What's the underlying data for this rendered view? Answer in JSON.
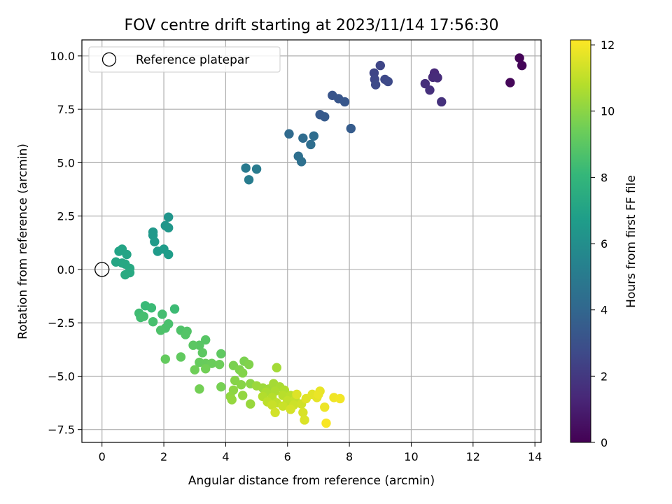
{
  "chart_data": {
    "type": "scatter",
    "title": "FOV centre drift starting at 2023/11/14 17:56:30",
    "xlabel": "Angular distance from reference (arcmin)",
    "ylabel": "Rotation from reference (arcmin)",
    "xlim": [
      -0.65,
      14.2
    ],
    "ylim": [
      -8.1,
      10.75
    ],
    "xticks": [
      0,
      2,
      4,
      6,
      8,
      10,
      12,
      14
    ],
    "yticks": [
      -7.5,
      -5.0,
      -2.5,
      0.0,
      2.5,
      5.0,
      7.5,
      10.0
    ],
    "xtick_labels": [
      "0",
      "2",
      "4",
      "6",
      "8",
      "10",
      "12",
      "14"
    ],
    "ytick_labels": [
      "−7.5",
      "−5.0",
      "−2.5",
      "0.0",
      "2.5",
      "5.0",
      "7.5",
      "10.0"
    ],
    "grid": true,
    "legend": {
      "placement": "upper-left",
      "label": "Reference platepar"
    },
    "reference_point": {
      "x": 0,
      "y": 0
    },
    "colorbar": {
      "label": "Hours from first FF file",
      "min": 0,
      "max": 12.15,
      "ticks": [
        0,
        2,
        4,
        6,
        8,
        10,
        12
      ],
      "tick_labels": [
        "0",
        "2",
        "4",
        "6",
        "8",
        "10",
        "12"
      ],
      "colormap": "viridis",
      "colors": [
        "#440154",
        "#482878",
        "#3e4a89",
        "#31688e",
        "#26828e",
        "#1f9e89",
        "#35b779",
        "#6ece58",
        "#b5de2b",
        "#fde725"
      ]
    },
    "points": [
      [
        13.5,
        9.9,
        0.1
      ],
      [
        13.58,
        9.55,
        0.15
      ],
      [
        13.2,
        8.75,
        0.2
      ],
      [
        10.75,
        9.2,
        1.4
      ],
      [
        10.7,
        9.0,
        1.45
      ],
      [
        10.85,
        8.98,
        1.5
      ],
      [
        10.45,
        8.7,
        1.6
      ],
      [
        10.6,
        8.4,
        1.65
      ],
      [
        10.98,
        7.85,
        1.7
      ],
      [
        8.8,
        9.2,
        2.5
      ],
      [
        9.0,
        9.55,
        2.55
      ],
      [
        8.82,
        8.9,
        2.6
      ],
      [
        9.15,
        8.9,
        2.65
      ],
      [
        9.25,
        8.8,
        2.7
      ],
      [
        8.85,
        8.65,
        2.75
      ],
      [
        7.45,
        8.15,
        3.2
      ],
      [
        7.65,
        8.0,
        3.25
      ],
      [
        7.85,
        7.85,
        3.3
      ],
      [
        7.05,
        7.25,
        3.4
      ],
      [
        7.2,
        7.15,
        3.45
      ],
      [
        8.05,
        6.6,
        3.5
      ],
      [
        6.05,
        6.35,
        4.2
      ],
      [
        6.5,
        6.15,
        4.25
      ],
      [
        6.85,
        6.25,
        4.3
      ],
      [
        6.75,
        5.85,
        4.35
      ],
      [
        6.35,
        5.3,
        4.4
      ],
      [
        6.45,
        5.05,
        4.45
      ],
      [
        4.65,
        4.75,
        5.0
      ],
      [
        5.0,
        4.7,
        5.05
      ],
      [
        4.75,
        4.2,
        5.1
      ],
      [
        2.15,
        2.45,
        6.3
      ],
      [
        2.05,
        2.05,
        6.35
      ],
      [
        2.15,
        1.95,
        6.4
      ],
      [
        1.65,
        1.75,
        6.45
      ],
      [
        1.65,
        1.6,
        6.5
      ],
      [
        1.7,
        1.3,
        6.55
      ],
      [
        1.8,
        0.85,
        6.6
      ],
      [
        2.0,
        0.95,
        6.65
      ],
      [
        2.15,
        0.7,
        6.7
      ],
      [
        0.55,
        0.85,
        7.0
      ],
      [
        0.65,
        0.95,
        7.05
      ],
      [
        0.8,
        0.7,
        7.1
      ],
      [
        0.45,
        0.35,
        7.15
      ],
      [
        0.65,
        0.3,
        7.2
      ],
      [
        0.75,
        0.25,
        7.25
      ],
      [
        0.9,
        0.05,
        7.3
      ],
      [
        0.9,
        -0.15,
        7.35
      ],
      [
        0.75,
        -0.25,
        7.4
      ],
      [
        1.4,
        -1.7,
        8.2
      ],
      [
        1.6,
        -1.8,
        8.25
      ],
      [
        2.35,
        -1.85,
        8.3
      ],
      [
        1.2,
        -2.05,
        8.35
      ],
      [
        1.25,
        -2.25,
        8.4
      ],
      [
        1.95,
        -2.1,
        8.45
      ],
      [
        1.35,
        -2.2,
        8.5
      ],
      [
        1.65,
        -2.45,
        8.55
      ],
      [
        2.15,
        -2.55,
        8.6
      ],
      [
        2.05,
        -2.75,
        8.65
      ],
      [
        1.9,
        -2.85,
        8.7
      ],
      [
        2.55,
        -2.85,
        8.75
      ],
      [
        2.75,
        -2.9,
        8.8
      ],
      [
        2.7,
        -3.05,
        8.85
      ],
      [
        3.35,
        -3.3,
        8.9
      ],
      [
        3.15,
        -3.55,
        8.95
      ],
      [
        2.95,
        -3.55,
        9.0
      ],
      [
        3.25,
        -3.9,
        9.05
      ],
      [
        3.85,
        -3.95,
        9.1
      ],
      [
        2.55,
        -4.1,
        9.15
      ],
      [
        2.05,
        -4.2,
        9.2
      ],
      [
        3.15,
        -4.35,
        9.25
      ],
      [
        3.35,
        -4.4,
        9.3
      ],
      [
        3.55,
        -4.4,
        9.35
      ],
      [
        3.8,
        -4.45,
        9.4
      ],
      [
        3.0,
        -4.7,
        9.45
      ],
      [
        3.35,
        -4.65,
        9.5
      ],
      [
        3.15,
        -5.6,
        9.55
      ],
      [
        3.85,
        -5.5,
        9.6
      ],
      [
        4.25,
        -4.5,
        9.65
      ],
      [
        4.6,
        -4.3,
        9.7
      ],
      [
        4.45,
        -4.7,
        9.75
      ],
      [
        4.75,
        -4.45,
        9.8
      ],
      [
        4.55,
        -4.85,
        9.85
      ],
      [
        4.3,
        -5.2,
        9.9
      ],
      [
        4.5,
        -5.4,
        9.95
      ],
      [
        4.8,
        -5.35,
        10.0
      ],
      [
        4.25,
        -5.65,
        10.05
      ],
      [
        4.15,
        -5.95,
        10.1
      ],
      [
        4.55,
        -5.9,
        10.15
      ],
      [
        4.2,
        -6.1,
        10.2
      ],
      [
        4.8,
        -6.3,
        10.25
      ],
      [
        5.0,
        -5.45,
        10.3
      ],
      [
        5.2,
        -5.55,
        10.35
      ],
      [
        5.4,
        -5.6,
        10.4
      ],
      [
        5.65,
        -4.6,
        10.45
      ],
      [
        5.55,
        -5.35,
        10.5
      ],
      [
        5.75,
        -5.5,
        10.55
      ],
      [
        5.3,
        -5.75,
        10.6
      ],
      [
        5.6,
        -5.7,
        10.65
      ],
      [
        5.9,
        -5.65,
        10.7
      ],
      [
        5.2,
        -5.95,
        10.75
      ],
      [
        5.5,
        -6.0,
        10.8
      ],
      [
        5.85,
        -5.9,
        10.85
      ],
      [
        6.1,
        -5.9,
        10.9
      ],
      [
        5.35,
        -6.2,
        10.95
      ],
      [
        5.65,
        -6.25,
        11.0
      ],
      [
        6.0,
        -6.15,
        11.05
      ],
      [
        6.25,
        -6.1,
        11.1
      ],
      [
        5.5,
        -6.35,
        11.15
      ],
      [
        5.85,
        -6.4,
        11.2
      ],
      [
        6.2,
        -6.35,
        11.25
      ],
      [
        6.45,
        -6.3,
        11.3
      ],
      [
        5.6,
        -6.7,
        11.35
      ],
      [
        6.1,
        -6.55,
        11.4
      ],
      [
        6.5,
        -6.7,
        11.45
      ],
      [
        6.55,
        -7.05,
        11.5
      ],
      [
        6.3,
        -5.85,
        11.55
      ],
      [
        6.6,
        -6.05,
        11.6
      ],
      [
        6.8,
        -5.85,
        11.65
      ],
      [
        6.95,
        -6.0,
        11.7
      ],
      [
        7.05,
        -5.7,
        11.75
      ],
      [
        7.0,
        -5.85,
        11.8
      ],
      [
        7.2,
        -6.45,
        11.85
      ],
      [
        7.5,
        -6.0,
        11.9
      ],
      [
        7.7,
        -6.05,
        11.95
      ],
      [
        7.25,
        -7.2,
        12.05
      ]
    ]
  }
}
